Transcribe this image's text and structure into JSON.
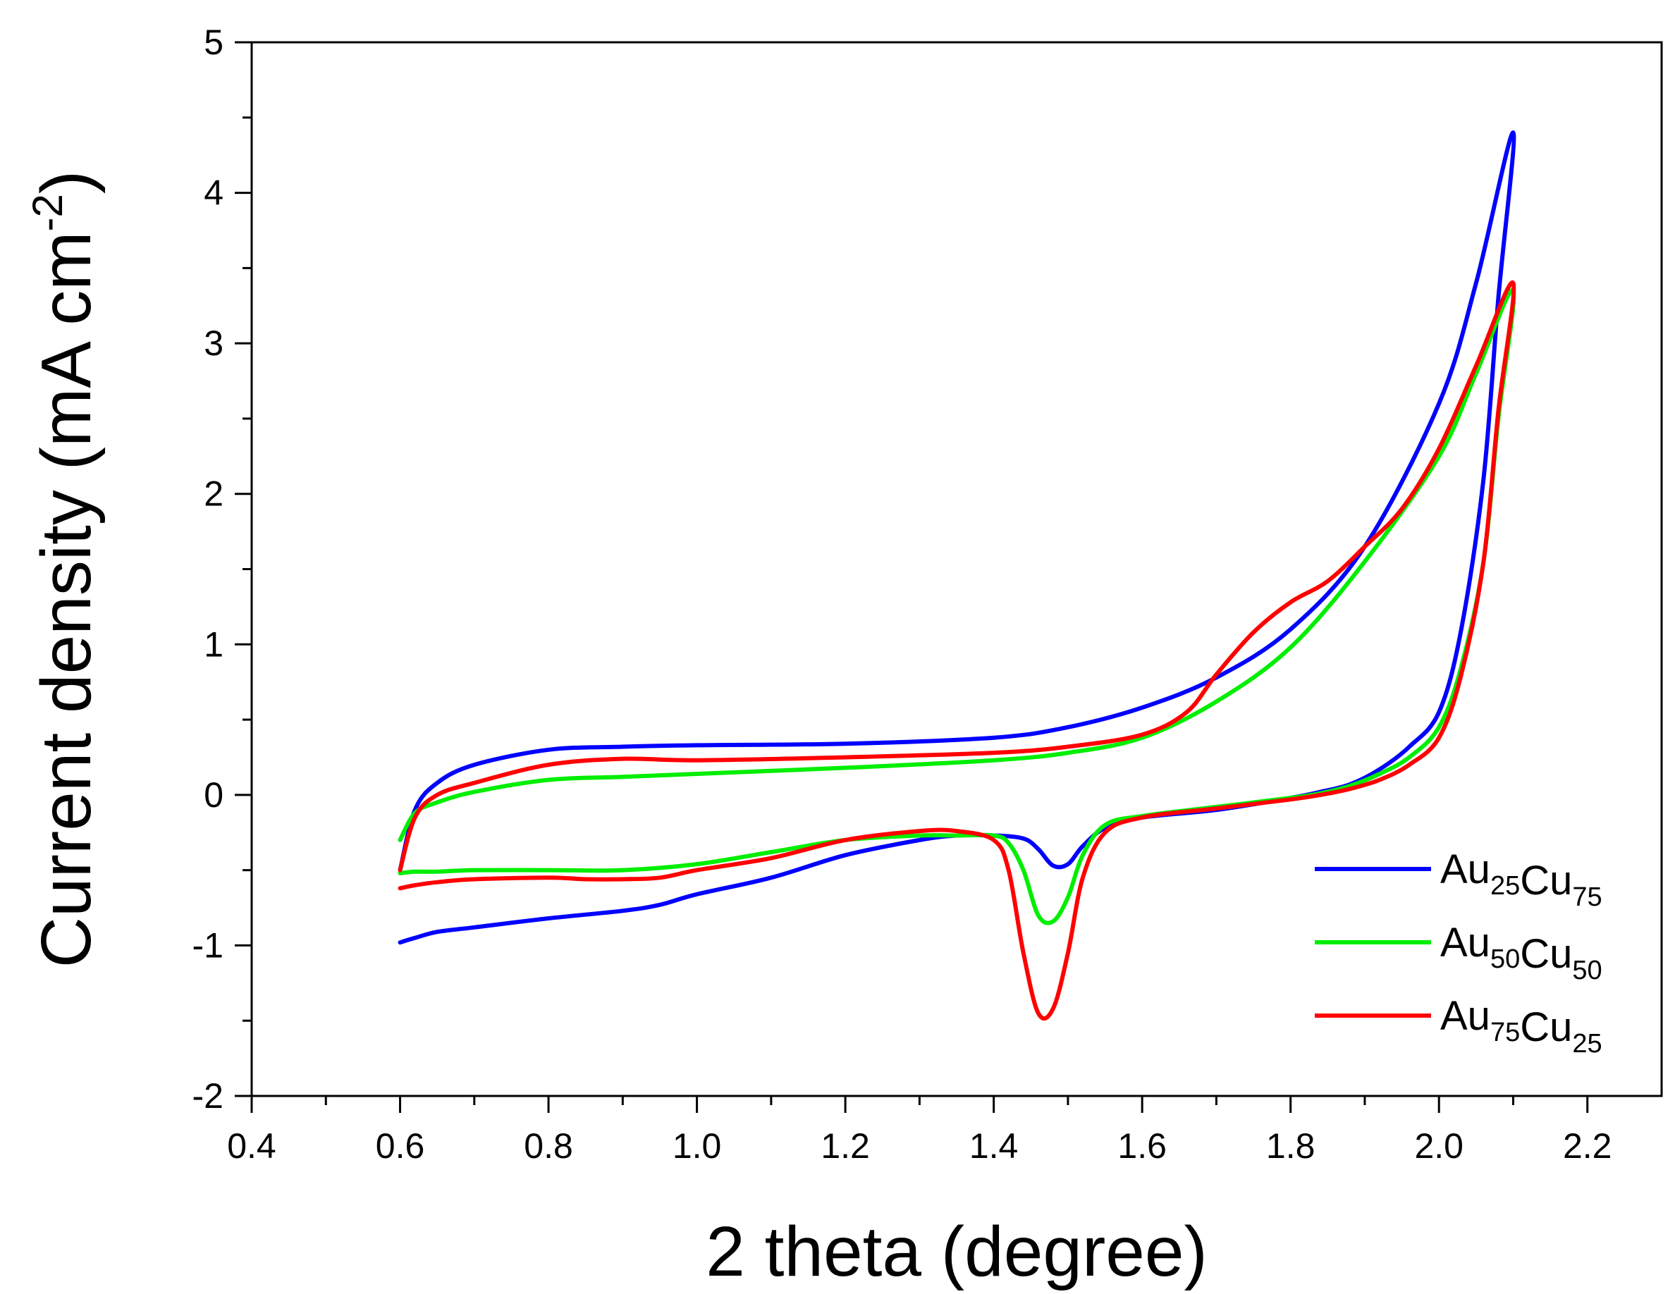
{
  "chart_data": {
    "type": "line",
    "title": "",
    "xlabel": "2  theta (degree)",
    "ylabel": "Current density (mA cm",
    "ylabel_sup": "-2",
    "ylabel_close": ")",
    "xlim": [
      0.4,
      2.3
    ],
    "ylim": [
      -2,
      5
    ],
    "xticks": [
      0.4,
      0.6,
      0.8,
      1.0,
      1.2,
      1.4,
      1.6,
      1.8,
      2.0,
      2.2
    ],
    "xtick_labels": [
      "0.4",
      "0.6",
      "0.8",
      "1.0",
      "1.2",
      "1.4",
      "1.6",
      "1.8",
      "2.0",
      "2.2"
    ],
    "yticks": [
      -2,
      -1,
      0,
      1,
      2,
      3,
      4,
      5
    ],
    "ytick_labels": [
      "-2",
      "-1",
      "0",
      "1",
      "2",
      "3",
      "4",
      "5"
    ],
    "grid": false,
    "legend_position": "bottom-right",
    "series": [
      {
        "name": "Au25Cu75",
        "label_parts": [
          [
            "Au",
            "25"
          ],
          [
            "Cu",
            "75"
          ]
        ],
        "color": "#0000ff",
        "x": [
          0.6,
          0.62,
          0.65,
          0.7,
          0.8,
          0.9,
          1.0,
          1.2,
          1.4,
          1.5,
          1.6,
          1.7,
          1.8,
          1.9,
          2.0,
          2.05,
          2.1,
          2.08,
          2.06,
          2.03,
          2.0,
          1.96,
          1.92,
          1.88,
          1.84,
          1.8,
          1.7,
          1.6,
          1.55,
          1.52,
          1.5,
          1.48,
          1.46,
          1.44,
          1.4,
          1.35,
          1.3,
          1.2,
          1.1,
          1.0,
          0.95,
          0.9,
          0.8,
          0.7,
          0.65,
          0.62,
          0.6
        ],
        "y": [
          -0.5,
          -0.1,
          0.08,
          0.2,
          0.3,
          0.32,
          0.33,
          0.34,
          0.38,
          0.45,
          0.58,
          0.78,
          1.1,
          1.65,
          2.6,
          3.4,
          4.4,
          3.3,
          2.1,
          1.1,
          0.55,
          0.32,
          0.17,
          0.07,
          0.02,
          -0.02,
          -0.1,
          -0.15,
          -0.22,
          -0.34,
          -0.46,
          -0.47,
          -0.36,
          -0.29,
          -0.27,
          -0.27,
          -0.3,
          -0.4,
          -0.55,
          -0.66,
          -0.73,
          -0.77,
          -0.82,
          -0.88,
          -0.91,
          -0.95,
          -0.98
        ]
      },
      {
        "name": "Au50Cu50",
        "label_parts": [
          [
            "Au",
            "50"
          ],
          [
            "Cu",
            "50"
          ]
        ],
        "color": "#00ee00",
        "x": [
          0.6,
          0.62,
          0.65,
          0.7,
          0.8,
          0.9,
          1.0,
          1.2,
          1.4,
          1.5,
          1.6,
          1.7,
          1.8,
          1.9,
          2.0,
          2.05,
          2.1,
          2.08,
          2.06,
          2.03,
          2.0,
          1.96,
          1.92,
          1.88,
          1.84,
          1.8,
          1.7,
          1.6,
          1.55,
          1.52,
          1.5,
          1.48,
          1.46,
          1.44,
          1.42,
          1.4,
          1.35,
          1.3,
          1.2,
          1.1,
          1.0,
          0.9,
          0.8,
          0.7,
          0.65,
          0.62,
          0.6
        ],
        "y": [
          -0.3,
          -0.12,
          -0.05,
          0.02,
          0.1,
          0.12,
          0.14,
          0.18,
          0.23,
          0.28,
          0.38,
          0.62,
          0.98,
          1.55,
          2.25,
          2.8,
          3.35,
          2.5,
          1.55,
          0.85,
          0.45,
          0.25,
          0.14,
          0.06,
          0.01,
          -0.02,
          -0.08,
          -0.14,
          -0.2,
          -0.4,
          -0.68,
          -0.84,
          -0.8,
          -0.5,
          -0.32,
          -0.27,
          -0.27,
          -0.27,
          -0.3,
          -0.38,
          -0.46,
          -0.5,
          -0.5,
          -0.5,
          -0.51,
          -0.51,
          -0.52
        ]
      },
      {
        "name": "Au75Cu25",
        "label_parts": [
          [
            "Au",
            "75"
          ],
          [
            "Cu",
            "25"
          ]
        ],
        "color": "#ff0000",
        "x": [
          0.6,
          0.62,
          0.65,
          0.7,
          0.8,
          0.9,
          1.0,
          1.2,
          1.4,
          1.5,
          1.6,
          1.66,
          1.7,
          1.75,
          1.8,
          1.85,
          1.9,
          1.95,
          2.0,
          2.05,
          2.1,
          2.08,
          2.06,
          2.03,
          2.0,
          1.96,
          1.92,
          1.88,
          1.84,
          1.8,
          1.7,
          1.6,
          1.55,
          1.52,
          1.5,
          1.48,
          1.46,
          1.44,
          1.42,
          1.4,
          1.35,
          1.3,
          1.2,
          1.1,
          1.0,
          0.95,
          0.9,
          0.85,
          0.8,
          0.7,
          0.65,
          0.62,
          0.6
        ],
        "y": [
          -0.5,
          -0.15,
          0.0,
          0.08,
          0.2,
          0.24,
          0.23,
          0.25,
          0.28,
          0.32,
          0.4,
          0.55,
          0.8,
          1.08,
          1.28,
          1.42,
          1.65,
          1.9,
          2.3,
          2.85,
          3.4,
          2.55,
          1.55,
          0.8,
          0.38,
          0.2,
          0.1,
          0.04,
          0.0,
          -0.03,
          -0.09,
          -0.15,
          -0.25,
          -0.55,
          -1.05,
          -1.42,
          -1.45,
          -1.05,
          -0.5,
          -0.3,
          -0.24,
          -0.24,
          -0.3,
          -0.42,
          -0.5,
          -0.55,
          -0.56,
          -0.56,
          -0.55,
          -0.56,
          -0.58,
          -0.6,
          -0.62
        ]
      }
    ]
  }
}
